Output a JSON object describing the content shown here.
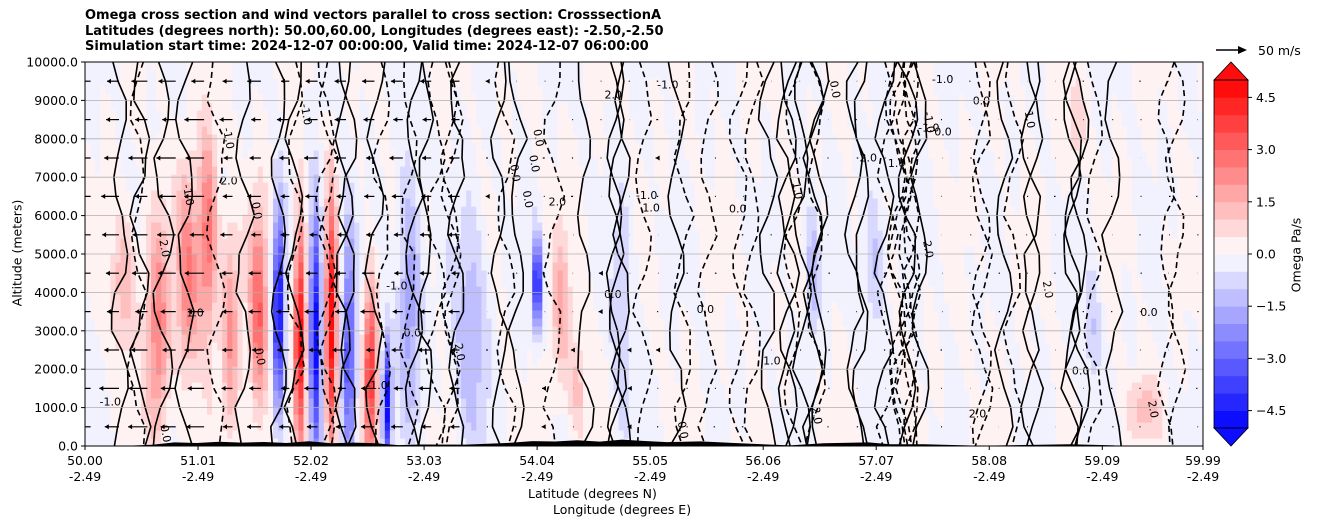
{
  "chart_data": {
    "type": "heatmap",
    "title_lines": [
      "Omega cross section and wind vectors parallel to cross section: CrosssectionA",
      "Latitudes (degrees north): 50.00,60.00, Longitudes (degrees east): -2.50,-2.50",
      "Simulation start time: 2024-12-07 00:00:00, Valid time: 2024-12-07 06:00:00"
    ],
    "ylabel": "Altitude (meters)",
    "xlabel_lat": "Latitude (degrees N)",
    "xlabel_lon": "Longitude (degrees E)",
    "ylim": [
      0,
      10000
    ],
    "xlim": [
      50.0,
      59.99
    ],
    "yticks": [
      {
        "v": 0,
        "label": "0.0"
      },
      {
        "v": 1000,
        "label": "1000.0"
      },
      {
        "v": 2000,
        "label": "2000.0"
      },
      {
        "v": 3000,
        "label": "3000.0"
      },
      {
        "v": 4000,
        "label": "4000.0"
      },
      {
        "v": 5000,
        "label": "5000.0"
      },
      {
        "v": 6000,
        "label": "6000.0"
      },
      {
        "v": 7000,
        "label": "7000.0"
      },
      {
        "v": 8000,
        "label": "8000.0"
      },
      {
        "v": 9000,
        "label": "9000.0"
      },
      {
        "v": 10000,
        "label": "10000.0"
      }
    ],
    "xticks": [
      {
        "v": 50.0,
        "lat": "50.00",
        "lon": "-2.49"
      },
      {
        "v": 51.01,
        "lat": "51.01",
        "lon": "-2.49"
      },
      {
        "v": 52.02,
        "lat": "52.02",
        "lon": "-2.49"
      },
      {
        "v": 53.03,
        "lat": "53.03",
        "lon": "-2.49"
      },
      {
        "v": 54.04,
        "lat": "54.04",
        "lon": "-2.49"
      },
      {
        "v": 55.05,
        "lat": "55.05",
        "lon": "-2.49"
      },
      {
        "v": 56.06,
        "lat": "56.06",
        "lon": "-2.49"
      },
      {
        "v": 57.07,
        "lat": "57.07",
        "lon": "-2.49"
      },
      {
        "v": 58.08,
        "lat": "58.08",
        "lon": "-2.49"
      },
      {
        "v": 59.09,
        "lat": "59.09",
        "lon": "-2.49"
      },
      {
        "v": 59.99,
        "lat": "59.99",
        "lon": "-2.49"
      }
    ],
    "grid": "horizontal",
    "colorbar": {
      "label": "Omega Pa/s",
      "range": [
        -5.0,
        5.0
      ],
      "extend": "both",
      "ticks": [
        {
          "v": 4.5,
          "label": "4.5"
        },
        {
          "v": 3.0,
          "label": "3.0"
        },
        {
          "v": 1.5,
          "label": "1.5"
        },
        {
          "v": 0.0,
          "label": "0.0"
        },
        {
          "v": -1.5,
          "label": "−1.5"
        },
        {
          "v": -3.0,
          "label": "−3.0"
        },
        {
          "v": -4.5,
          "label": "−4.5"
        }
      ],
      "cmap": "bwr",
      "levels": 20
    },
    "quiver_key": {
      "value": 50,
      "label": "50 m/s"
    },
    "contour_labels": [
      "0.0",
      "1.0",
      "-1.0",
      "2.0"
    ],
    "features": [
      {
        "lat": 50.35,
        "alt": 4200,
        "omega": 1.5,
        "width": 0.12,
        "height": 3500
      },
      {
        "lat": 50.65,
        "alt": 3000,
        "omega": 2.5,
        "width": 0.1,
        "height": 5500
      },
      {
        "lat": 50.92,
        "alt": 4500,
        "omega": 2.5,
        "width": 0.1,
        "height": 5000
      },
      {
        "lat": 51.1,
        "alt": 5500,
        "omega": 3.0,
        "width": 0.08,
        "height": 5000
      },
      {
        "lat": 51.3,
        "alt": 3000,
        "omega": 2.0,
        "width": 0.08,
        "height": 5000
      },
      {
        "lat": 51.55,
        "alt": 3500,
        "omega": 3.0,
        "width": 0.08,
        "height": 5000
      },
      {
        "lat": 51.73,
        "alt": 3500,
        "omega": -5.0,
        "width": 0.05,
        "height": 5000
      },
      {
        "lat": 51.92,
        "alt": 3000,
        "omega": 5.0,
        "width": 0.05,
        "height": 5500
      },
      {
        "lat": 52.06,
        "alt": 3000,
        "omega": -5.0,
        "width": 0.05,
        "height": 6000
      },
      {
        "lat": 52.2,
        "alt": 3200,
        "omega": 5.0,
        "width": 0.05,
        "height": 6000
      },
      {
        "lat": 52.36,
        "alt": 2500,
        "omega": -3.5,
        "width": 0.06,
        "height": 6000
      },
      {
        "lat": 52.55,
        "alt": 2000,
        "omega": 4.0,
        "width": 0.06,
        "height": 4500
      },
      {
        "lat": 52.7,
        "alt": 1200,
        "omega": -5.0,
        "width": 0.04,
        "height": 3000
      },
      {
        "lat": 52.9,
        "alt": 4000,
        "omega": -2.0,
        "width": 0.1,
        "height": 6000
      },
      {
        "lat": 53.45,
        "alt": 3000,
        "omega": -1.5,
        "width": 0.15,
        "height": 6000
      },
      {
        "lat": 54.04,
        "alt": 4200,
        "omega": -5.0,
        "width": 0.04,
        "height": 2200
      },
      {
        "lat": 54.25,
        "alt": 3500,
        "omega": 1.5,
        "width": 0.08,
        "height": 4000
      },
      {
        "lat": 54.4,
        "alt": 1500,
        "omega": 1.2,
        "width": 0.08,
        "height": 2500
      },
      {
        "lat": 54.8,
        "alt": 3500,
        "omega": -1.0,
        "width": 0.1,
        "height": 6000
      },
      {
        "lat": 56.5,
        "alt": 4500,
        "omega": -1.5,
        "width": 0.06,
        "height": 3500
      },
      {
        "lat": 57.05,
        "alt": 5000,
        "omega": -1.2,
        "width": 0.1,
        "height": 4000
      },
      {
        "lat": 58.85,
        "alt": 8200,
        "omega": 1.0,
        "width": 0.08,
        "height": 2000
      },
      {
        "lat": 59.45,
        "alt": 1000,
        "omega": 1.2,
        "width": 0.15,
        "height": 1500
      },
      {
        "lat": 59.0,
        "alt": 3000,
        "omega": -1.0,
        "width": 0.08,
        "height": 3000
      }
    ]
  }
}
